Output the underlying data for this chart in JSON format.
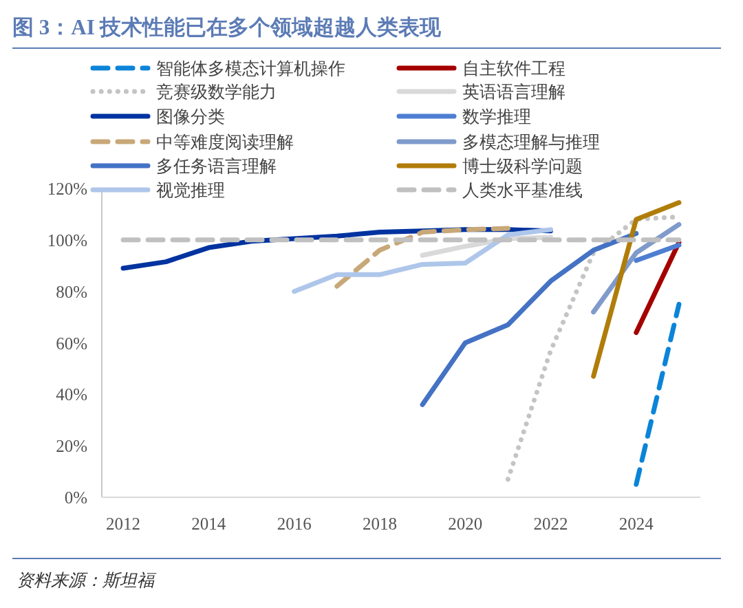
{
  "chart_data": {
    "type": "line",
    "title": "图 3：AI 技术性能已在多个领域超越人类表现",
    "annotations": [
      "资料来源：斯坦福"
    ],
    "xlim": [
      2011.5,
      2025.5
    ],
    "xticks": [
      2012,
      2014,
      2016,
      2018,
      2020,
      2022,
      2024
    ],
    "ylim": [
      0,
      120
    ],
    "yticks": [
      {
        "value": 0,
        "label": "0%"
      },
      {
        "value": 20,
        "label": "20%"
      },
      {
        "value": 40,
        "label": "40%"
      },
      {
        "value": 60,
        "label": "60%"
      },
      {
        "value": 80,
        "label": "80%"
      },
      {
        "value": 100,
        "label": "100%"
      },
      {
        "value": 120,
        "label": "120%"
      }
    ],
    "legend": "top",
    "series": [
      {
        "name": "智能体多模态计算机操作",
        "color": "#0b84d8",
        "line_style": "dashed",
        "x": [
          2024,
          2025
        ],
        "values": [
          5,
          75
        ]
      },
      {
        "name": "自主软件工程",
        "color": "#a50000",
        "line_style": "solid",
        "x": [
          2024,
          2025
        ],
        "values": [
          64,
          99
        ]
      },
      {
        "name": "竞赛级数学能力",
        "color": "#c4c4c4",
        "line_style": "dotted",
        "x": [
          2021,
          2022,
          2023,
          2024,
          2025
        ],
        "values": [
          7,
          57,
          95,
          108,
          109
        ]
      },
      {
        "name": "英语语言理解",
        "color": "#d9d9d9",
        "line_style": "solid",
        "x": [
          2019,
          2020,
          2021,
          2022
        ],
        "values": [
          94,
          97.5,
          100.5,
          101
        ]
      },
      {
        "name": "图像分类",
        "color": "#0033a0",
        "line_style": "solid",
        "x": [
          2012,
          2013,
          2014,
          2015,
          2016,
          2017,
          2018,
          2019,
          2020,
          2021,
          2022
        ],
        "values": [
          89,
          91.5,
          97,
          99.5,
          100.5,
          101.5,
          103,
          103.5,
          104,
          104,
          103.5
        ]
      },
      {
        "name": "数学推理",
        "color": "#4e7ed2",
        "line_style": "solid",
        "x": [
          2024,
          2025
        ],
        "values": [
          92,
          98
        ]
      },
      {
        "name": "中等难度阅读理解",
        "color": "#c8a878",
        "line_style": "dashed",
        "x": [
          2017,
          2018,
          2019,
          2020,
          2021
        ],
        "values": [
          82,
          96,
          103,
          104,
          104.5
        ]
      },
      {
        "name": "多模态理解与推理",
        "color": "#7f9acb",
        "line_style": "solid",
        "x": [
          2023,
          2024,
          2025
        ],
        "values": [
          72,
          95,
          106
        ]
      },
      {
        "name": "多任务语言理解",
        "color": "#4472c4",
        "line_style": "solid",
        "x": [
          2019,
          2020,
          2021,
          2022,
          2023,
          2024
        ],
        "values": [
          36,
          60,
          67,
          84,
          96,
          102.5
        ]
      },
      {
        "name": "博士级科学问题",
        "color": "#b07d0a",
        "line_style": "solid",
        "x": [
          2023,
          2024,
          2025
        ],
        "values": [
          47,
          108,
          114.5
        ]
      },
      {
        "name": "视觉推理",
        "color": "#aec6ea",
        "line_style": "solid",
        "x": [
          2016,
          2017,
          2018,
          2019,
          2020,
          2021,
          2022
        ],
        "values": [
          80,
          86.5,
          86.5,
          90.5,
          91,
          102,
          104
        ]
      },
      {
        "name": "人类水平基准线",
        "color": "#c0c0c0",
        "line_style": "dashed",
        "x": [
          2012,
          2013,
          2014,
          2015,
          2016,
          2017,
          2018,
          2019,
          2020,
          2021,
          2022,
          2023,
          2024,
          2025
        ],
        "values": [
          100,
          100,
          100,
          100,
          100,
          100,
          100,
          100,
          100,
          100,
          100,
          100,
          100,
          100
        ]
      }
    ]
  }
}
